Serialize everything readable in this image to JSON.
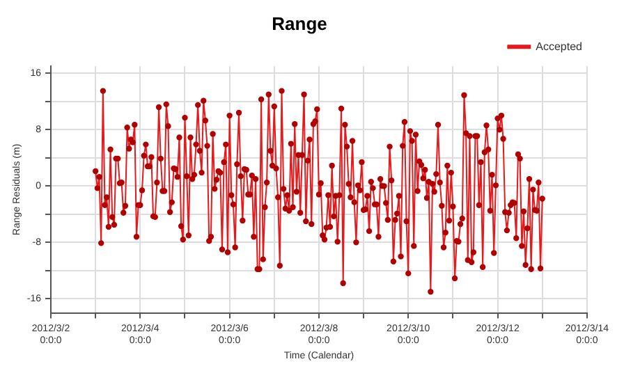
{
  "chart_data": {
    "type": "line",
    "title": "Range",
    "xlabel": "Time (Calendar)",
    "ylabel": "Range Residuals (m)",
    "xlim": [
      "2012-03-02",
      "2012-03-14"
    ],
    "xticks": [
      {
        "value": "2012-03-02",
        "label": "2012/3/2 0:0:0"
      },
      {
        "value": "2012-03-03",
        "label": null
      },
      {
        "value": "2012-03-04",
        "label": "2012/3/4 0:0:0"
      },
      {
        "value": "2012-03-05",
        "label": null
      },
      {
        "value": "2012-03-06",
        "label": "2012/3/6 0:0:0"
      },
      {
        "value": "2012-03-07",
        "label": null
      },
      {
        "value": "2012-03-08",
        "label": "2012/3/8 0:0:0"
      },
      {
        "value": "2012-03-09",
        "label": null
      },
      {
        "value": "2012-03-10",
        "label": "2012/3/10 0:0:0"
      },
      {
        "value": "2012-03-11",
        "label": null
      },
      {
        "value": "2012-03-12",
        "label": "2012/3/12 0:0:0"
      },
      {
        "value": "2012-03-13",
        "label": null
      },
      {
        "value": "2012-03-14",
        "label": "2012/3/14 0:0:0"
      }
    ],
    "ylim": [
      -18,
      17
    ],
    "yticks": [
      -16,
      {
        "value": -12,
        "label": null
      },
      -8,
      {
        "value": -4,
        "label": null
      },
      0,
      {
        "value": 4,
        "label": null
      },
      8,
      {
        "value": 12,
        "label": null
      },
      16
    ],
    "grid": true,
    "legend": "top right",
    "marker": "circle",
    "line_style": "solid",
    "x": [
      "2012-03-03T00:00",
      "2012-03-03T01:00",
      "2012-03-03T02:00",
      "2012-03-03T03:00",
      "2012-03-03T04:00",
      "2012-03-03T05:00",
      "2012-03-03T06:00",
      "2012-03-03T07:00",
      "2012-03-03T08:00",
      "2012-03-03T09:00",
      "2012-03-03T10:00",
      "2012-03-03T11:00",
      "2012-03-03T12:00",
      "2012-03-03T13:00",
      "2012-03-03T14:00",
      "2012-03-03T15:00",
      "2012-03-03T16:00",
      "2012-03-03T17:00",
      "2012-03-03T18:00",
      "2012-03-03T19:00",
      "2012-03-03T20:00",
      "2012-03-03T21:00",
      "2012-03-03T22:00",
      "2012-03-03T23:00",
      "2012-03-04T00:00",
      "2012-03-04T01:00",
      "2012-03-04T02:00",
      "2012-03-04T03:00",
      "2012-03-04T04:00",
      "2012-03-04T05:00",
      "2012-03-04T06:00",
      "2012-03-04T07:00",
      "2012-03-04T08:00",
      "2012-03-04T09:00",
      "2012-03-04T10:00",
      "2012-03-04T11:00",
      "2012-03-04T12:00",
      "2012-03-04T13:00",
      "2012-03-04T14:00",
      "2012-03-04T15:00",
      "2012-03-04T16:00",
      "2012-03-04T17:00",
      "2012-03-04T18:00",
      "2012-03-04T19:00",
      "2012-03-04T20:00",
      "2012-03-04T21:00",
      "2012-03-04T22:00",
      "2012-03-04T23:00",
      "2012-03-05T00:00",
      "2012-03-05T01:00",
      "2012-03-05T02:00",
      "2012-03-05T03:00",
      "2012-03-05T04:00",
      "2012-03-05T05:00",
      "2012-03-05T06:00",
      "2012-03-05T07:00",
      "2012-03-05T08:00",
      "2012-03-05T09:00",
      "2012-03-05T10:00",
      "2012-03-05T11:00",
      "2012-03-05T12:00",
      "2012-03-05T13:00",
      "2012-03-05T14:00",
      "2012-03-05T15:00",
      "2012-03-05T16:00",
      "2012-03-05T17:00",
      "2012-03-05T18:00",
      "2012-03-05T19:00",
      "2012-03-05T20:00",
      "2012-03-05T21:00",
      "2012-03-05T22:00",
      "2012-03-05T23:00",
      "2012-03-06T00:00",
      "2012-03-06T01:00",
      "2012-03-06T02:00",
      "2012-03-06T03:00",
      "2012-03-06T04:00",
      "2012-03-06T05:00",
      "2012-03-06T06:00",
      "2012-03-06T07:00",
      "2012-03-06T08:00",
      "2012-03-06T09:00",
      "2012-03-06T10:00",
      "2012-03-06T11:00",
      "2012-03-06T12:00",
      "2012-03-06T13:00",
      "2012-03-06T14:00",
      "2012-03-06T15:00",
      "2012-03-06T16:00",
      "2012-03-06T17:00",
      "2012-03-06T18:00",
      "2012-03-06T19:00",
      "2012-03-06T20:00",
      "2012-03-06T21:00",
      "2012-03-06T22:00",
      "2012-03-06T23:00",
      "2012-03-07T00:00",
      "2012-03-07T01:00",
      "2012-03-07T02:00",
      "2012-03-07T03:00",
      "2012-03-07T04:00",
      "2012-03-07T05:00",
      "2012-03-07T06:00",
      "2012-03-07T07:00",
      "2012-03-07T08:00",
      "2012-03-07T09:00",
      "2012-03-07T10:00",
      "2012-03-07T11:00",
      "2012-03-07T12:00",
      "2012-03-07T13:00",
      "2012-03-07T14:00",
      "2012-03-07T15:00",
      "2012-03-07T16:00",
      "2012-03-07T17:00",
      "2012-03-07T18:00",
      "2012-03-07T19:00",
      "2012-03-07T20:00",
      "2012-03-07T21:00",
      "2012-03-07T22:00",
      "2012-03-07T23:00",
      "2012-03-08T00:00",
      "2012-03-08T01:00",
      "2012-03-08T02:00",
      "2012-03-08T03:00",
      "2012-03-08T04:00",
      "2012-03-08T05:00",
      "2012-03-08T06:00",
      "2012-03-08T07:00",
      "2012-03-08T08:00",
      "2012-03-08T09:00",
      "2012-03-08T10:00",
      "2012-03-08T11:00",
      "2012-03-08T12:00",
      "2012-03-08T13:00",
      "2012-03-08T14:00",
      "2012-03-08T15:00",
      "2012-03-08T16:00",
      "2012-03-08T17:00",
      "2012-03-08T18:00",
      "2012-03-08T19:00",
      "2012-03-08T20:00",
      "2012-03-08T21:00",
      "2012-03-08T22:00",
      "2012-03-08T23:00",
      "2012-03-09T00:00",
      "2012-03-09T01:00",
      "2012-03-09T02:00",
      "2012-03-09T03:00",
      "2012-03-09T04:00",
      "2012-03-09T05:00",
      "2012-03-09T06:00",
      "2012-03-09T07:00",
      "2012-03-09T08:00",
      "2012-03-09T09:00",
      "2012-03-09T10:00",
      "2012-03-09T11:00",
      "2012-03-09T12:00",
      "2012-03-09T13:00",
      "2012-03-09T14:00",
      "2012-03-09T15:00",
      "2012-03-09T16:00",
      "2012-03-09T17:00",
      "2012-03-09T18:00",
      "2012-03-09T19:00",
      "2012-03-09T20:00",
      "2012-03-09T21:00",
      "2012-03-09T22:00",
      "2012-03-09T23:00",
      "2012-03-10T00:00",
      "2012-03-10T01:00",
      "2012-03-10T02:00",
      "2012-03-10T03:00",
      "2012-03-10T04:00",
      "2012-03-10T05:00",
      "2012-03-10T06:00",
      "2012-03-10T07:00",
      "2012-03-10T08:00",
      "2012-03-10T09:00",
      "2012-03-10T10:00",
      "2012-03-10T11:00",
      "2012-03-10T12:00",
      "2012-03-10T13:00",
      "2012-03-10T14:00",
      "2012-03-10T15:00",
      "2012-03-10T16:00",
      "2012-03-10T17:00",
      "2012-03-10T18:00",
      "2012-03-10T19:00",
      "2012-03-10T20:00",
      "2012-03-10T21:00",
      "2012-03-10T22:00",
      "2012-03-10T23:00",
      "2012-03-11T00:00",
      "2012-03-11T01:00",
      "2012-03-11T02:00",
      "2012-03-11T03:00",
      "2012-03-11T04:00",
      "2012-03-11T05:00",
      "2012-03-11T06:00",
      "2012-03-11T07:00",
      "2012-03-11T08:00",
      "2012-03-11T09:00",
      "2012-03-11T10:00",
      "2012-03-11T11:00",
      "2012-03-11T12:00",
      "2012-03-11T13:00",
      "2012-03-11T14:00",
      "2012-03-11T15:00",
      "2012-03-11T16:00",
      "2012-03-11T17:00",
      "2012-03-11T18:00",
      "2012-03-11T19:00",
      "2012-03-11T20:00",
      "2012-03-11T21:00",
      "2012-03-11T22:00",
      "2012-03-11T23:00",
      "2012-03-12T00:00",
      "2012-03-12T01:00",
      "2012-03-12T02:00",
      "2012-03-12T03:00",
      "2012-03-12T04:00",
      "2012-03-12T05:00",
      "2012-03-12T06:00",
      "2012-03-12T07:00",
      "2012-03-12T08:00",
      "2012-03-12T09:00",
      "2012-03-12T10:00",
      "2012-03-12T11:00",
      "2012-03-12T12:00",
      "2012-03-12T13:00",
      "2012-03-12T14:00",
      "2012-03-12T15:00",
      "2012-03-12T16:00",
      "2012-03-12T17:00",
      "2012-03-12T18:00",
      "2012-03-12T19:00",
      "2012-03-12T20:00",
      "2012-03-12T21:00",
      "2012-03-12T22:00",
      "2012-03-12T23:00",
      "2012-03-13T00:00"
    ],
    "series": [
      {
        "name": "Accepted",
        "color": "#e41a1c",
        "values": [
          2.1,
          -0.3,
          1.3,
          -8.1,
          13.5,
          -2.7,
          -1.6,
          -5.8,
          5.2,
          -4.4,
          -5.5,
          3.9,
          3.9,
          0.4,
          0.5,
          -3.8,
          -2.8,
          8.3,
          5.3,
          6.6,
          6.2,
          8.7,
          -7.2,
          -2.7,
          -2.7,
          -0.6,
          4.3,
          5.9,
          2.8,
          2.8,
          4.1,
          -4.3,
          -4.4,
          0.5,
          11.2,
          3.9,
          -0.7,
          -0.7,
          11.6,
          8.5,
          -3.7,
          -2.3,
          2.5,
          2.4,
          1.3,
          6.9,
          -5.7,
          -7.6,
          9.7,
          1.4,
          -7.0,
          6.9,
          1.0,
          1.6,
          5.9,
          11.5,
          5.0,
          1.9,
          12.1,
          9.3,
          5.7,
          -7.8,
          -7.2,
          7.4,
          -0.4,
          0.9,
          2.1,
          1.9,
          -9.0,
          3.4,
          5.9,
          -9.4,
          10.0,
          -1.3,
          -2.6,
          -8.7,
          3.1,
          10.4,
          1.4,
          -4.9,
          2.4,
          2.3,
          -1.2,
          -1.2,
          1.5,
          -7.2,
          1.0,
          -11.8,
          -11.8,
          12.3,
          -10.4,
          -3.0,
          0.5,
          13.0,
          5.0,
          2.9,
          11.3,
          2.5,
          -1.6,
          -11.3,
          13.5,
          -0.4,
          -3.2,
          -1.3,
          -3.5,
          6.0,
          -3.0,
          8.8,
          -0.8,
          4.4,
          -3.8,
          4.4,
          13.0,
          -5.0,
          3.6,
          6.6,
          -5.4,
          8.8,
          9.2,
          10.9,
          -1.2,
          0.4,
          -7.0,
          -7.6,
          -5.9,
          -1.3,
          -5.8,
          2.9,
          -4.3,
          -1.4,
          -7.9,
          -1.3,
          11.0,
          -13.8,
          8.7,
          5.6,
          0.3,
          -1.6,
          6.4,
          -2.3,
          -8.0,
          0.1,
          -0.6,
          3.4,
          -3.4,
          -3.3,
          -1.4,
          -6.4,
          0.6,
          -0.3,
          -2.6,
          -2.6,
          -7.2,
          1.0,
          0.0,
          0.0,
          -2.4,
          -4.8,
          5.6,
          0.8,
          -10.7,
          -4.8,
          -3.9,
          -1.4,
          -10.0,
          5.7,
          9.1,
          -5.0,
          -12.4,
          7.8,
          6.4,
          -8.5,
          7.3,
          -0.7,
          3.5,
          3.0,
          1.1,
          2.3,
          -1.7,
          0.6,
          -15.0,
          0.3,
          -0.8,
          1.7,
          8.7,
          0.5,
          -2.8,
          -8.7,
          -6.6,
          2.9,
          -4.9,
          1.9,
          -2.9,
          -13.1,
          -7.8,
          -7.9,
          -5.4,
          -4.6,
          12.9,
          7.5,
          -10.5,
          7.1,
          -10.8,
          -9.4,
          7.1,
          7.1,
          -2.7,
          3.4,
          -11.5,
          4.8,
          8.6,
          5.2,
          -3.5,
          1.6,
          -9.5,
          0.1,
          9.6,
          8.0,
          10.0,
          6.7,
          -3.7,
          -6.3,
          -3.8,
          -2.7,
          -2.3,
          -2.4,
          -7.4,
          4.5,
          3.9,
          -8.5,
          -3.6,
          -11.2,
          -6.0,
          1.0,
          -11.8,
          -0.5,
          -3.4,
          -3.5,
          0.5,
          -11.7,
          -1.8
        ]
      }
    ]
  }
}
